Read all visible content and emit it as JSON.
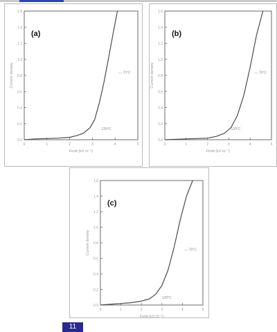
{
  "page_number": "11",
  "colors": {
    "curve": "#4a4a4a",
    "frame": "#6a6a6a",
    "text_light": "#999999",
    "badge": "#2a2a8c"
  },
  "chart_data": [
    {
      "type": "line",
      "panel_label": "(a)",
      "xlabel": "Field (kV m⁻¹)",
      "ylabel": "Current density",
      "xlim": [
        0,
        5
      ],
      "ylim": [
        0,
        1.6
      ],
      "xticks": [
        "0",
        "1",
        "2",
        "3",
        "4",
        "5"
      ],
      "yticks": [
        "0.0",
        "0.2",
        "0.4",
        "0.6",
        "0.8",
        "1.0",
        "1.2",
        "1.4",
        "1.6"
      ],
      "annotations": [
        {
          "text": "— 70°C",
          "at": [
            4.15,
            0.82
          ]
        },
        {
          "text": "120°C",
          "at": [
            3.4,
            0.12
          ]
        }
      ],
      "series": [
        {
          "x": [
            0,
            0.5,
            1,
            1.5,
            2,
            2.3,
            2.6,
            2.9,
            3.1,
            3.3,
            3.5,
            3.7,
            3.9,
            4.1
          ],
          "y": [
            0.0,
            0.01,
            0.015,
            0.02,
            0.03,
            0.05,
            0.08,
            0.15,
            0.25,
            0.45,
            0.7,
            1.0,
            1.3,
            1.6
          ]
        }
      ]
    },
    {
      "type": "line",
      "panel_label": "(b)",
      "xlabel": "Field (kV m⁻¹)",
      "ylabel": "Current density",
      "xlim": [
        0,
        5
      ],
      "ylim": [
        0,
        1.6
      ],
      "xticks": [
        "0",
        "1",
        "2",
        "3",
        "4",
        "5"
      ],
      "yticks": [
        "0.0",
        "0.2",
        "0.4",
        "0.6",
        "0.8",
        "1.0",
        "1.2",
        "1.4",
        "1.6"
      ],
      "annotations": [
        {
          "text": "— 70°C",
          "at": [
            4.2,
            0.82
          ]
        },
        {
          "text": "120°C",
          "at": [
            3.1,
            0.12
          ]
        }
      ],
      "series": [
        {
          "x": [
            0,
            0.5,
            1,
            1.5,
            2,
            2.4,
            2.8,
            3.1,
            3.4,
            3.7,
            4.0,
            4.3,
            4.6
          ],
          "y": [
            0.0,
            0.005,
            0.01,
            0.015,
            0.02,
            0.04,
            0.08,
            0.15,
            0.3,
            0.55,
            0.9,
            1.3,
            1.6
          ]
        }
      ]
    },
    {
      "type": "line",
      "panel_label": "(c)",
      "xlabel": "Field (kV m⁻¹)",
      "ylabel": "Current density",
      "xlim": [
        0,
        5
      ],
      "ylim": [
        0,
        1.6
      ],
      "xticks": [
        "0",
        "1",
        "2",
        "3",
        "4",
        "5"
      ],
      "yticks": [
        "0.0",
        "0.2",
        "0.4",
        "0.6",
        "0.8",
        "1.0",
        "1.2",
        "1.4",
        "1.6"
      ],
      "annotations": [
        {
          "text": "— 70°C",
          "at": [
            4.1,
            0.7
          ]
        },
        {
          "text": "120°C",
          "at": [
            3.0,
            0.08
          ]
        }
      ],
      "series": [
        {
          "x": [
            0,
            0.5,
            1,
            1.5,
            2,
            2.4,
            2.7,
            3.0,
            3.3,
            3.6,
            3.9,
            4.2,
            4.5
          ],
          "y": [
            0.0,
            0.01,
            0.02,
            0.03,
            0.05,
            0.08,
            0.14,
            0.25,
            0.45,
            0.75,
            1.1,
            1.4,
            1.6
          ]
        }
      ]
    }
  ]
}
